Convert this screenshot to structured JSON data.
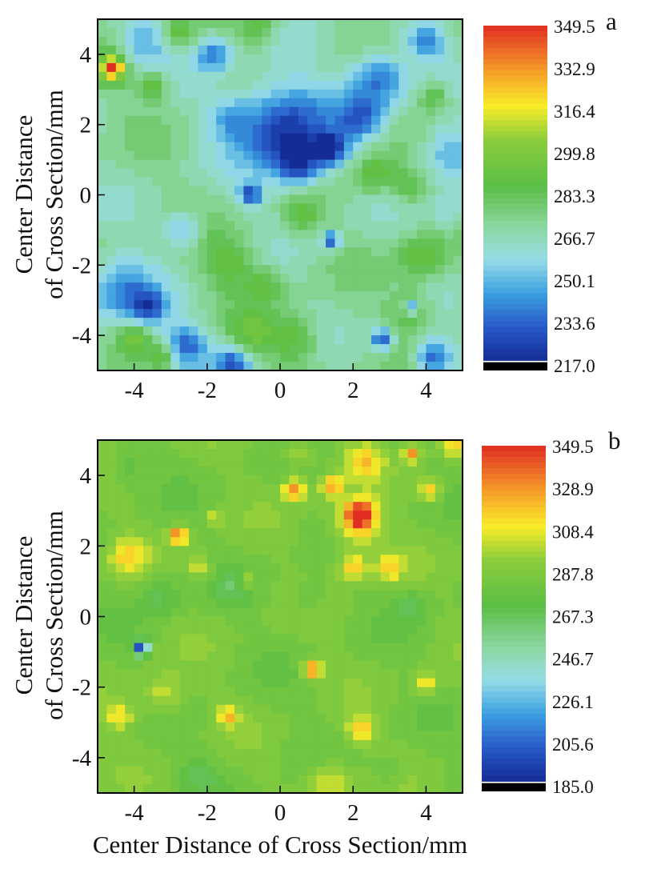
{
  "xlabel": "Center Distance of Cross Section/mm",
  "chart_data": [
    {
      "type": "heatmap",
      "panel_label": "a",
      "ylabel_line1": "Center Distance",
      "ylabel_line2": "of Cross Section/mm",
      "xlim": [
        -5,
        5
      ],
      "ylim": [
        -5,
        5
      ],
      "x_ticks": [
        -4,
        -2,
        0,
        2,
        4
      ],
      "y_ticks": [
        -4,
        -2,
        0,
        2,
        4
      ],
      "colorbar_range": [
        217.0,
        349.5
      ],
      "colorbar_ticks": [
        "349.5",
        "332.9",
        "316.4",
        "299.8",
        "283.3",
        "266.7",
        "250.1",
        "233.6",
        "217.0"
      ],
      "base_value": 270,
      "features": [
        {
          "x": 0.1,
          "y": 1.9,
          "v": 221,
          "r": 1.3
        },
        {
          "x": 0.5,
          "y": 0.9,
          "v": 230,
          "r": 0.6
        },
        {
          "x": 1.4,
          "y": 1.3,
          "v": 228,
          "r": 0.45
        },
        {
          "x": 2.7,
          "y": 3.3,
          "v": 233,
          "r": 0.8
        },
        {
          "x": 2.2,
          "y": 2.2,
          "v": 240,
          "r": 0.6
        },
        {
          "x": 4.0,
          "y": 4.4,
          "v": 236,
          "r": 0.5
        },
        {
          "x": 4.6,
          "y": 1.2,
          "v": 244,
          "r": 0.8
        },
        {
          "x": -3.8,
          "y": 4.3,
          "v": 246,
          "r": 0.7
        },
        {
          "x": -1.8,
          "y": 4.0,
          "v": 240,
          "r": 0.5
        },
        {
          "x": -4.6,
          "y": 3.6,
          "v": 345,
          "r": 0.22
        },
        {
          "x": -4.6,
          "y": 3.6,
          "v": 300,
          "r": 0.5
        },
        {
          "x": -3.5,
          "y": 3.1,
          "v": 295,
          "r": 0.4
        },
        {
          "x": -4.4,
          "y": -2.7,
          "v": 238,
          "r": 0.9
        },
        {
          "x": -3.6,
          "y": -3.2,
          "v": 236,
          "r": 0.5
        },
        {
          "x": -2.6,
          "y": -4.3,
          "v": 234,
          "r": 0.6
        },
        {
          "x": -1.3,
          "y": -4.8,
          "v": 232,
          "r": 0.5
        },
        {
          "x": 4.2,
          "y": -4.6,
          "v": 230,
          "r": 0.5
        },
        {
          "x": 3.6,
          "y": -3.2,
          "v": 228,
          "r": 0.2
        },
        {
          "x": 2.8,
          "y": -4.1,
          "v": 226,
          "r": 0.3
        },
        {
          "x": 1.4,
          "y": -1.3,
          "v": 226,
          "r": 0.25
        },
        {
          "x": -0.8,
          "y": 0.0,
          "v": 228,
          "r": 0.3
        },
        {
          "x": -2.7,
          "y": -1.0,
          "v": 243,
          "r": 0.5
        },
        {
          "x": -1.4,
          "y": -1.9,
          "v": 290,
          "r": 0.8
        },
        {
          "x": -0.4,
          "y": -2.6,
          "v": 288,
          "r": 0.5
        },
        {
          "x": 0.4,
          "y": -4.1,
          "v": 292,
          "r": 0.7
        },
        {
          "x": -0.8,
          "y": -4.0,
          "v": 290,
          "r": 0.6
        },
        {
          "x": 3.9,
          "y": -1.8,
          "v": 292,
          "r": 0.7
        },
        {
          "x": 3.6,
          "y": -3.3,
          "v": 290,
          "r": 0.6
        },
        {
          "x": 2.6,
          "y": 0.6,
          "v": 292,
          "r": 0.6
        },
        {
          "x": 3.6,
          "y": 0.2,
          "v": 288,
          "r": 0.5
        },
        {
          "x": 0.6,
          "y": -0.6,
          "v": 290,
          "r": 0.5
        },
        {
          "x": 4.2,
          "y": 2.8,
          "v": 292,
          "r": 0.4
        },
        {
          "x": -0.6,
          "y": 4.8,
          "v": 290,
          "r": 0.5
        },
        {
          "x": -2.8,
          "y": 4.6,
          "v": 292,
          "r": 0.4
        },
        {
          "x": -4.0,
          "y": -4.1,
          "v": 294,
          "r": 0.4
        },
        {
          "x": -3.2,
          "y": -4.6,
          "v": 294,
          "r": 0.35
        },
        {
          "x": -1.4,
          "y": 2.2,
          "v": 252,
          "r": 0.6
        },
        {
          "x": 4.6,
          "y": -0.5,
          "v": 256,
          "r": 0.6
        }
      ]
    },
    {
      "type": "heatmap",
      "panel_label": "b",
      "ylabel_line1": "Center Distance",
      "ylabel_line2": "of Cross Section/mm",
      "xlim": [
        -5,
        5
      ],
      "ylim": [
        -5,
        5
      ],
      "x_ticks": [
        -4,
        -2,
        0,
        2,
        4
      ],
      "y_ticks": [
        -4,
        -2,
        0,
        2,
        4
      ],
      "colorbar_range": [
        185.0,
        349.5
      ],
      "colorbar_ticks": [
        "349.5",
        "328.9",
        "308.4",
        "287.8",
        "267.3",
        "246.7",
        "226.1",
        "205.6",
        "185.0"
      ],
      "base_value": 284,
      "features": [
        {
          "x": 2.2,
          "y": 2.9,
          "v": 346,
          "r": 0.35
        },
        {
          "x": 2.1,
          "y": 2.6,
          "v": 320,
          "r": 0.7
        },
        {
          "x": 0.4,
          "y": 3.6,
          "v": 334,
          "r": 0.3
        },
        {
          "x": 1.4,
          "y": 3.7,
          "v": 326,
          "r": 0.3
        },
        {
          "x": 3.6,
          "y": 4.6,
          "v": 328,
          "r": 0.25
        },
        {
          "x": 4.1,
          "y": 3.6,
          "v": 322,
          "r": 0.3
        },
        {
          "x": 2.3,
          "y": 4.4,
          "v": 314,
          "r": 0.5
        },
        {
          "x": -2.8,
          "y": 2.3,
          "v": 338,
          "r": 0.25
        },
        {
          "x": 0.9,
          "y": -1.5,
          "v": 338,
          "r": 0.25
        },
        {
          "x": 2.0,
          "y": 1.4,
          "v": 318,
          "r": 0.4
        },
        {
          "x": 3.0,
          "y": 1.4,
          "v": 316,
          "r": 0.4
        },
        {
          "x": -4.2,
          "y": 1.7,
          "v": 312,
          "r": 0.5
        },
        {
          "x": -2.2,
          "y": 1.4,
          "v": 310,
          "r": 0.3
        },
        {
          "x": -1.8,
          "y": 2.8,
          "v": 312,
          "r": 0.2
        },
        {
          "x": -4.4,
          "y": -2.8,
          "v": 312,
          "r": 0.4
        },
        {
          "x": -1.4,
          "y": -2.8,
          "v": 316,
          "r": 0.3
        },
        {
          "x": 2.2,
          "y": -3.2,
          "v": 316,
          "r": 0.4
        },
        {
          "x": 1.4,
          "y": -4.7,
          "v": 310,
          "r": 0.6
        },
        {
          "x": 4.0,
          "y": -1.9,
          "v": 312,
          "r": 0.3
        },
        {
          "x": -3.2,
          "y": -2.2,
          "v": 306,
          "r": 0.6
        },
        {
          "x": -0.9,
          "y": 1.0,
          "v": 310,
          "r": 0.25
        },
        {
          "x": 0.5,
          "y": 4.6,
          "v": 306,
          "r": 0.4
        },
        {
          "x": 4.8,
          "y": 4.9,
          "v": 310,
          "r": 0.4
        },
        {
          "x": -3.8,
          "y": -0.9,
          "v": 192,
          "r": 0.2
        },
        {
          "x": -3.3,
          "y": 0.6,
          "v": 268,
          "r": 0.6
        },
        {
          "x": -1.2,
          "y": 0.8,
          "v": 270,
          "r": 0.5
        },
        {
          "x": 3.6,
          "y": 0.3,
          "v": 270,
          "r": 0.5
        },
        {
          "x": -4.2,
          "y": 4.2,
          "v": 272,
          "r": 0.5
        },
        {
          "x": 0.8,
          "y": 0.5,
          "v": 272,
          "r": 0.5
        },
        {
          "x": -2.2,
          "y": -4.5,
          "v": 270,
          "r": 0.5
        },
        {
          "x": 3.0,
          "y": -4.4,
          "v": 272,
          "r": 0.4
        }
      ]
    }
  ]
}
